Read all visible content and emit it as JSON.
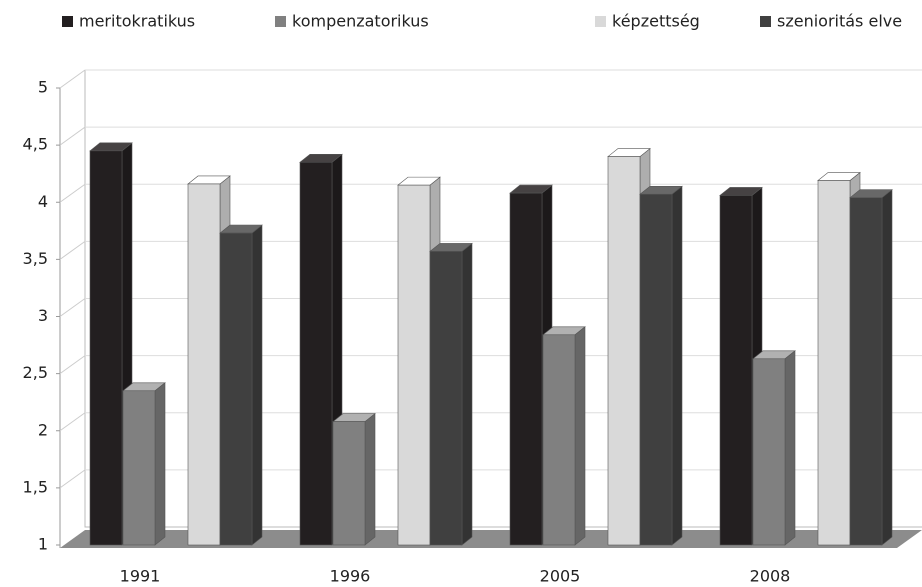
{
  "chart_data": {
    "type": "bar3d",
    "categories": [
      "1991",
      "1996",
      "2005",
      "2008"
    ],
    "series": [
      {
        "name": "meritokratikus",
        "color": "#231f20",
        "values": [
          4.45,
          4.35,
          4.08,
          4.06
        ]
      },
      {
        "name": "kompenzatorikus",
        "color": "#808080",
        "values": [
          2.35,
          2.08,
          2.84,
          2.63
        ]
      },
      {
        "name": "képzettség",
        "color": "#d9d9d9",
        "values": [
          4.16,
          4.15,
          4.4,
          4.19
        ]
      },
      {
        "name": "szenioritás elve",
        "color": "#404040",
        "values": [
          3.73,
          3.57,
          4.07,
          4.04
        ]
      }
    ],
    "ylim": [
      1,
      5
    ],
    "yticks": [
      1,
      {
        "value": 1.5,
        "label": "1,5"
      },
      2,
      {
        "value": 2.5,
        "label": "2,5"
      },
      3,
      {
        "value": 3.5,
        "label": "3,5"
      },
      4,
      {
        "value": 4.5,
        "label": "4,5"
      },
      5
    ],
    "grid": true
  }
}
